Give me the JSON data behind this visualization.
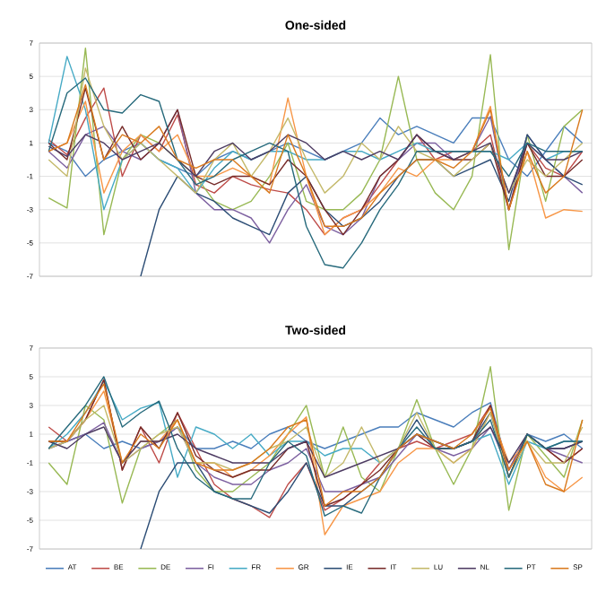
{
  "chart_data": [
    {
      "type": "line",
      "title": "One-sided",
      "categories": [
        null,
        null,
        null,
        null,
        null,
        null,
        null,
        null,
        null,
        null,
        null,
        null,
        null,
        null,
        null,
        null,
        null,
        null,
        null,
        null,
        null,
        null,
        null,
        null,
        null,
        null,
        null,
        null,
        null,
        null
      ],
      "ylim": [
        -7,
        7
      ],
      "yticks": [
        -7,
        -5,
        -3,
        -1,
        1,
        3,
        5,
        7
      ],
      "grid": "y",
      "tick_labels": "y",
      "series": [
        {
          "color": "#4a7ebb",
          "values": [
            1,
            0.5,
            -1,
            0,
            0.5,
            1,
            0,
            -0.5,
            -1,
            0,
            0.5,
            0,
            0.5,
            1,
            0.5,
            0,
            0.5,
            1,
            2.5,
            1.5,
            2,
            1.5,
            1,
            2.5,
            2.5,
            0,
            -1,
            0.5,
            2,
            1
          ]
        },
        {
          "color": "#be4b48",
          "values": [
            1.2,
            0.3,
            2.5,
            4.3,
            -1,
            1.5,
            0.5,
            2.7,
            -1.5,
            -2,
            -1,
            -1.5,
            -1.8,
            -2,
            -3,
            -4.5,
            -3.5,
            -3,
            -1.5,
            0,
            1.5,
            0,
            0.5,
            0.5,
            1.5,
            -3,
            1,
            -0.5,
            -1,
            0.5
          ]
        },
        {
          "color": "#98b954",
          "values": [
            -2.3,
            -2.9,
            6.7,
            -4.5,
            0,
            1.5,
            1,
            0,
            -1,
            -2.5,
            -3,
            -2.5,
            -1,
            1,
            -2.5,
            -3,
            -3,
            -2,
            0,
            5,
            0,
            -2,
            -3,
            -1,
            6.3,
            -5.4,
            1.5,
            -2.5,
            2,
            3
          ]
        },
        {
          "color": "#7d60a0",
          "values": [
            0.5,
            -0.5,
            1.5,
            2,
            0.5,
            0,
            1,
            3,
            -2,
            -3,
            -3,
            -3.5,
            -5,
            -3,
            -1.5,
            -4,
            -4.5,
            -3.5,
            -1,
            0,
            1,
            1,
            0,
            0.5,
            2.6,
            -3,
            1.5,
            0,
            -1,
            -2
          ]
        },
        {
          "color": "#46aac5",
          "values": [
            1,
            6.2,
            3,
            -3,
            0,
            1,
            0,
            -0.5,
            -2,
            -0.5,
            0.5,
            0,
            0.5,
            0.5,
            0,
            0,
            0.5,
            0.5,
            0,
            0.5,
            1,
            0.5,
            0.5,
            0.5,
            0.5,
            0,
            1,
            0,
            0.5,
            0.5
          ]
        },
        {
          "color": "#f79646",
          "values": [
            0.5,
            1,
            3.5,
            -2,
            0.5,
            1.5,
            0.5,
            1.5,
            -1,
            -1,
            -0.5,
            -1,
            -1.5,
            3.7,
            -1,
            -4.5,
            -3.5,
            -3,
            -2,
            -0.5,
            -1,
            0,
            0,
            0.5,
            3.2,
            -3,
            0.5,
            -3.5,
            -3,
            -3.1
          ]
        },
        {
          "color": "#2c4d75",
          "values": [
            null,
            null,
            null,
            null,
            null,
            -7,
            -3,
            -1,
            -2,
            -2.5,
            -3.5,
            -4,
            -4.5,
            -2,
            -1,
            -3,
            -4,
            -3.5,
            -2.5,
            -1,
            0,
            0,
            -1,
            -0.5,
            0,
            -2.5,
            1.5,
            0,
            -1,
            -1.5
          ]
        },
        {
          "color": "#772c2a",
          "values": [
            1,
            0,
            4.3,
            0,
            2,
            0,
            1,
            3,
            -1,
            -1.5,
            -1,
            -1,
            -1.5,
            0,
            -1,
            -3,
            -4.5,
            -3,
            -1,
            0,
            1.5,
            0.5,
            0,
            0,
            1,
            -3,
            1,
            -1,
            -1,
            0
          ]
        },
        {
          "color": "#c4b96a",
          "values": [
            0,
            -1,
            5.5,
            2,
            0,
            1,
            0,
            -1,
            -2,
            0,
            1,
            -1,
            0.5,
            2.5,
            0,
            -2,
            -1,
            1,
            0,
            2,
            0.5,
            0,
            -1,
            0,
            1,
            -2,
            0,
            -1,
            0,
            1
          ]
        },
        {
          "color": "#4d3b62",
          "values": [
            0.8,
            0.2,
            1.5,
            1,
            0,
            0.5,
            1,
            0,
            -1,
            0.5,
            1,
            0,
            0.5,
            1.5,
            1,
            0,
            0.5,
            0,
            0.5,
            0,
            1.5,
            0.5,
            0,
            0.5,
            1,
            -2,
            1,
            0,
            0,
            0.5
          ]
        },
        {
          "color": "#276a7c",
          "values": [
            0.5,
            4,
            4.9,
            3,
            2.8,
            3.9,
            3.5,
            0,
            -1.5,
            -1,
            0,
            0.5,
            1,
            0.5,
            -4,
            -6.3,
            -6.5,
            -5,
            -3,
            -1.5,
            0.5,
            0.5,
            0.5,
            0.5,
            0.5,
            -1,
            1,
            0.5,
            0.5,
            0.5
          ]
        },
        {
          "color": "#d97a1e",
          "values": [
            0.5,
            1,
            4.5,
            0,
            1.5,
            1,
            2,
            0,
            -0.5,
            0,
            0,
            -1,
            -2,
            1.5,
            -1,
            -4,
            -4,
            -3.5,
            -2,
            -1,
            0,
            0,
            -0.5,
            0.5,
            3,
            -3,
            0.5,
            -2,
            -1,
            3
          ]
        }
      ]
    },
    {
      "type": "line",
      "title": "Two-sided",
      "categories": [
        null,
        null,
        null,
        null,
        null,
        null,
        null,
        null,
        null,
        null,
        null,
        null,
        null,
        null,
        null,
        null,
        null,
        null,
        null,
        null,
        null,
        null,
        null,
        null,
        null,
        null,
        null,
        null,
        null,
        null
      ],
      "ylim": [
        -7,
        7
      ],
      "yticks": [
        -7,
        -5,
        -3,
        -1,
        1,
        3,
        5,
        7
      ],
      "grid": "y",
      "tick_labels": "y",
      "legend": "bottom",
      "series": [
        {
          "name": "AT",
          "color": "#4a7ebb",
          "values": [
            0,
            0.5,
            1,
            0,
            0.5,
            0,
            0.5,
            1.5,
            0,
            0,
            0.5,
            0,
            1,
            1.5,
            0.5,
            0,
            0.5,
            1,
            1.5,
            1.5,
            2.5,
            2,
            1.5,
            2.5,
            3.2,
            -1.5,
            1,
            0.5,
            1,
            0
          ]
        },
        {
          "name": "BE",
          "color": "#be4b48",
          "values": [
            1.5,
            0.5,
            2,
            4.8,
            -1.5,
            1.5,
            -1,
            2.5,
            0,
            -2.5,
            -3.5,
            -4,
            -4.8,
            -2.5,
            -1,
            -4.3,
            -3.5,
            -2.5,
            -1,
            0,
            0.5,
            0,
            0.5,
            1,
            3,
            -1.5,
            1,
            0,
            -1,
            0
          ]
        },
        {
          "name": "DE",
          "color": "#98b954",
          "values": [
            -1,
            -2.5,
            3,
            2,
            -3.8,
            0,
            1,
            2,
            -1.5,
            -3,
            -3,
            -2,
            -1,
            1,
            3,
            -2,
            1.5,
            -2,
            -3,
            0,
            3.4,
            0,
            -2.5,
            0,
            5.7,
            -4.3,
            1,
            -0.5,
            -2,
            2
          ]
        },
        {
          "name": "FI",
          "color": "#7d60a0",
          "values": [
            0,
            0.5,
            1,
            1.8,
            -1,
            0,
            0.5,
            1.5,
            -1,
            -2,
            -2.5,
            -2.5,
            -1.5,
            -1,
            0,
            -3,
            -3,
            -2.5,
            -2,
            -0.5,
            1,
            0,
            -0.5,
            0,
            1.5,
            -1.5,
            1,
            0,
            -0.5,
            -1
          ]
        },
        {
          "name": "FR",
          "color": "#46aac5",
          "values": [
            0,
            1,
            2.5,
            4.7,
            2,
            2.8,
            3.2,
            -2,
            1.5,
            1,
            0,
            1,
            -0.5,
            0.5,
            0.5,
            -0.5,
            0,
            0,
            -1,
            0,
            1,
            0.5,
            0,
            0.5,
            1,
            -2.5,
            0.5,
            0,
            0.5,
            0.5
          ]
        },
        {
          "name": "GR",
          "color": "#f79646",
          "values": [
            0.5,
            0.5,
            2,
            4,
            -1,
            0.5,
            0.5,
            2,
            -1,
            -1,
            -2,
            -1.5,
            -0.5,
            1,
            2.2,
            -6,
            -4,
            -3.5,
            -3,
            -1,
            0,
            0,
            -1,
            0,
            2.5,
            -1,
            0.5,
            -2,
            -3,
            -2
          ]
        },
        {
          "name": "IE",
          "color": "#2c4d75",
          "values": [
            null,
            null,
            null,
            null,
            null,
            -7,
            -3,
            -1,
            -1,
            -3,
            -3.5,
            -4,
            -4.5,
            -3,
            -1,
            -4,
            -4,
            -3,
            -2,
            0,
            2,
            0,
            0,
            0.5,
            2.5,
            -2,
            1,
            0,
            0,
            0.5
          ]
        },
        {
          "name": "IT",
          "color": "#772c2a",
          "values": [
            0.5,
            0.5,
            2,
            4.8,
            -1.5,
            1.5,
            0,
            2.5,
            -0.5,
            -1.5,
            -2,
            -1.5,
            -1.5,
            0,
            0.5,
            -4,
            -3.5,
            -2.5,
            -1.5,
            0,
            1,
            0,
            0,
            0.5,
            3,
            -2,
            1,
            0,
            -1,
            0
          ]
        },
        {
          "name": "LU",
          "color": "#c4b96a",
          "values": [
            0,
            0.5,
            2,
            3,
            -1,
            0,
            1,
            1.5,
            -1,
            -1,
            -1.5,
            -1,
            0,
            0.5,
            1.5,
            -2,
            -1,
            1.5,
            -1,
            0,
            2.5,
            0,
            -1,
            0,
            2.5,
            -2,
            0.5,
            -1,
            -1,
            1.5
          ]
        },
        {
          "name": "NL",
          "color": "#4d3b62",
          "values": [
            0.5,
            0,
            1,
            1.5,
            -1,
            0.5,
            0.5,
            1,
            0,
            -0.5,
            -1,
            -1,
            -1,
            0,
            0.5,
            -2,
            -1.5,
            -1,
            -0.5,
            0,
            1,
            0.5,
            0,
            0.5,
            1.5,
            -1,
            1,
            0,
            0,
            0.5
          ]
        },
        {
          "name": "PT",
          "color": "#276a7c",
          "values": [
            0,
            1.5,
            3,
            5,
            1.5,
            2.5,
            3.3,
            0,
            -2,
            -3,
            -3.5,
            -3.5,
            -1,
            0.5,
            -0.5,
            -4.7,
            -4,
            -4.5,
            -2,
            0,
            1.5,
            0,
            0,
            0.5,
            2,
            -2,
            1,
            0,
            0.5,
            0.5
          ]
        },
        {
          "name": "SP",
          "color": "#d97a1e",
          "values": [
            0.5,
            0.5,
            2.5,
            4.5,
            -1,
            1,
            0,
            2,
            -1,
            -1.5,
            -1.5,
            -1,
            0,
            1.5,
            2,
            -4,
            -3,
            -3,
            -2,
            0,
            1,
            0.5,
            0,
            1,
            2.8,
            -1.5,
            0.5,
            -2.5,
            -3,
            2
          ]
        }
      ]
    }
  ]
}
